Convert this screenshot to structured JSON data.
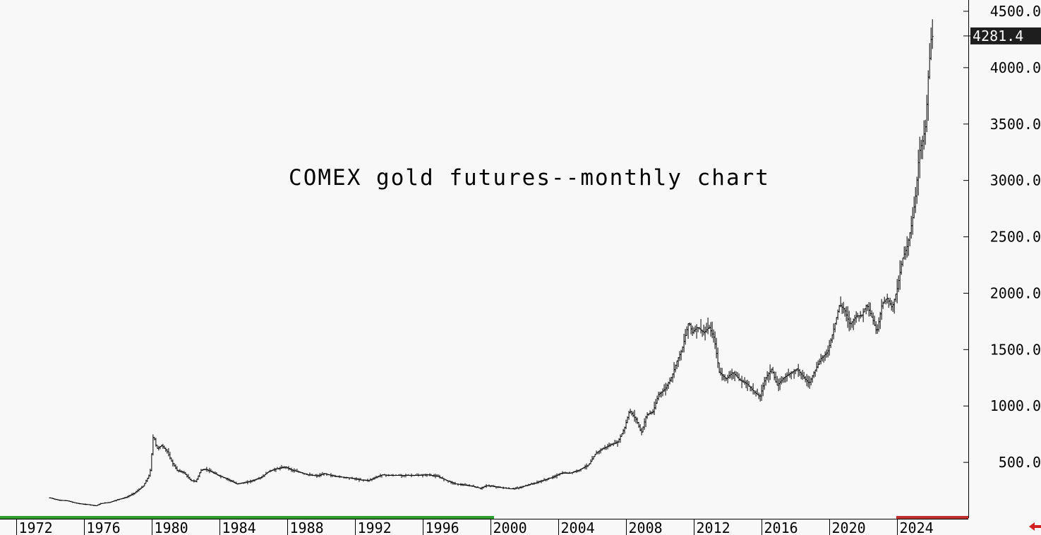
{
  "chart_data": {
    "type": "ohlc",
    "title": "COMEX gold futures--monthly chart",
    "xlabel": "",
    "ylabel": "",
    "x_tick_labels": [
      "1972",
      "1976",
      "1980",
      "1984",
      "1988",
      "1992",
      "1996",
      "2000",
      "2004",
      "2008",
      "2012",
      "2016",
      "2020",
      "2024"
    ],
    "y_tick_labels": [
      "500.0",
      "1000.0",
      "1500.0",
      "2000.0",
      "2500.0",
      "3000.0",
      "3500.0",
      "4000.0",
      "4500.0"
    ],
    "y_ticks": [
      500,
      1000,
      1500,
      2000,
      2500,
      3000,
      3500,
      4000,
      4500
    ],
    "xlim": [
      1971.05,
      2028.2
    ],
    "ylim": [
      0,
      4600
    ],
    "last_price": "4281.4",
    "last_price_value": 4281.4,
    "grid": false,
    "series": [
      {
        "points": [
          [
            1974.0,
            185
          ],
          [
            1974.5,
            165
          ],
          [
            1975.0,
            160
          ],
          [
            1975.5,
            140
          ],
          [
            1975.9,
            130
          ],
          [
            1976.3,
            125
          ],
          [
            1976.7,
            115
          ],
          [
            1977.0,
            135
          ],
          [
            1977.5,
            145
          ],
          [
            1978.0,
            170
          ],
          [
            1978.5,
            190
          ],
          [
            1979.0,
            230
          ],
          [
            1979.5,
            290
          ],
          [
            1979.9,
            400
          ],
          [
            1980.1,
            750
          ],
          [
            1980.3,
            620
          ],
          [
            1980.6,
            650
          ],
          [
            1980.9,
            600
          ],
          [
            1981.2,
            500
          ],
          [
            1981.5,
            430
          ],
          [
            1981.9,
            410
          ],
          [
            1982.3,
            340
          ],
          [
            1982.6,
            330
          ],
          [
            1982.9,
            430
          ],
          [
            1983.2,
            440
          ],
          [
            1983.6,
            410
          ],
          [
            1984.0,
            380
          ],
          [
            1984.5,
            350
          ],
          [
            1985.0,
            310
          ],
          [
            1985.5,
            320
          ],
          [
            1986.0,
            340
          ],
          [
            1986.5,
            370
          ],
          [
            1986.9,
            420
          ],
          [
            1987.3,
            440
          ],
          [
            1987.9,
            460
          ],
          [
            1988.3,
            430
          ],
          [
            1988.8,
            410
          ],
          [
            1989.2,
            390
          ],
          [
            1989.8,
            380
          ],
          [
            1990.2,
            400
          ],
          [
            1990.7,
            380
          ],
          [
            1991.2,
            370
          ],
          [
            1991.8,
            360
          ],
          [
            1992.3,
            345
          ],
          [
            1992.8,
            340
          ],
          [
            1993.2,
            365
          ],
          [
            1993.6,
            390
          ],
          [
            1994.0,
            385
          ],
          [
            1994.6,
            385
          ],
          [
            1995.2,
            385
          ],
          [
            1995.8,
            385
          ],
          [
            1996.3,
            390
          ],
          [
            1996.9,
            375
          ],
          [
            1997.4,
            340
          ],
          [
            1997.9,
            310
          ],
          [
            1998.4,
            300
          ],
          [
            1998.9,
            290
          ],
          [
            1999.4,
            270
          ],
          [
            1999.8,
            295
          ],
          [
            2000.2,
            285
          ],
          [
            2000.7,
            275
          ],
          [
            2001.2,
            265
          ],
          [
            2001.7,
            275
          ],
          [
            2002.2,
            300
          ],
          [
            2002.7,
            320
          ],
          [
            2003.2,
            345
          ],
          [
            2003.7,
            370
          ],
          [
            2004.2,
            405
          ],
          [
            2004.7,
            405
          ],
          [
            2005.2,
            430
          ],
          [
            2005.8,
            480
          ],
          [
            2006.2,
            580
          ],
          [
            2006.6,
            620
          ],
          [
            2007.0,
            650
          ],
          [
            2007.5,
            680
          ],
          [
            2007.9,
            800
          ],
          [
            2008.2,
            960
          ],
          [
            2008.6,
            880
          ],
          [
            2008.9,
            760
          ],
          [
            2009.2,
            920
          ],
          [
            2009.6,
            950
          ],
          [
            2009.9,
            1100
          ],
          [
            2010.3,
            1150
          ],
          [
            2010.7,
            1260
          ],
          [
            2011.0,
            1400
          ],
          [
            2011.3,
            1500
          ],
          [
            2011.7,
            1750
          ],
          [
            2011.9,
            1650
          ],
          [
            2012.2,
            1700
          ],
          [
            2012.6,
            1650
          ],
          [
            2012.9,
            1700
          ],
          [
            2013.2,
            1600
          ],
          [
            2013.5,
            1300
          ],
          [
            2013.9,
            1240
          ],
          [
            2014.3,
            1300
          ],
          [
            2014.7,
            1230
          ],
          [
            2015.1,
            1200
          ],
          [
            2015.6,
            1120
          ],
          [
            2015.9,
            1080
          ],
          [
            2016.2,
            1240
          ],
          [
            2016.6,
            1330
          ],
          [
            2016.9,
            1180
          ],
          [
            2017.3,
            1250
          ],
          [
            2017.7,
            1290
          ],
          [
            2018.1,
            1330
          ],
          [
            2018.5,
            1250
          ],
          [
            2018.8,
            1200
          ],
          [
            2019.1,
            1300
          ],
          [
            2019.5,
            1420
          ],
          [
            2019.9,
            1480
          ],
          [
            2020.2,
            1650
          ],
          [
            2020.6,
            1900
          ],
          [
            2020.9,
            1850
          ],
          [
            2021.2,
            1720
          ],
          [
            2021.6,
            1800
          ],
          [
            2021.9,
            1800
          ],
          [
            2022.2,
            1900
          ],
          [
            2022.6,
            1750
          ],
          [
            2022.8,
            1650
          ],
          [
            2023.1,
            1900
          ],
          [
            2023.4,
            1960
          ],
          [
            2023.7,
            1870
          ],
          [
            2024.0,
            2040
          ],
          [
            2024.3,
            2300
          ],
          [
            2024.6,
            2420
          ],
          [
            2024.9,
            2650
          ],
          [
            2025.1,
            2880
          ],
          [
            2025.3,
            3250
          ],
          [
            2025.5,
            3350
          ],
          [
            2025.7,
            3500
          ],
          [
            2025.8,
            3850
          ],
          [
            2026.0,
            4250
          ],
          [
            2026.1,
            4281.4
          ]
        ]
      }
    ]
  }
}
